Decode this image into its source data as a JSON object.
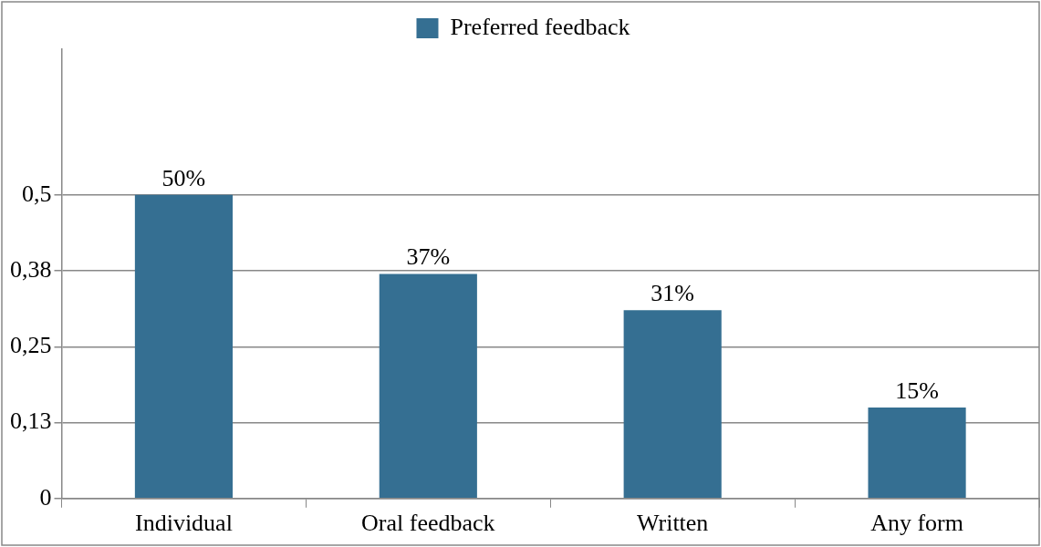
{
  "chart_data": {
    "type": "bar",
    "categories": [
      "Individual",
      "Oral feedback",
      "Written",
      "Any form"
    ],
    "series": [
      {
        "name": "Preferred feedback",
        "color": "#356f92",
        "values": [
          0.5,
          0.37,
          0.31,
          0.15
        ],
        "value_labels": [
          "50%",
          "37%",
          "31%",
          "15%"
        ]
      }
    ],
    "ylim": [
      0,
      0.74
    ],
    "yticks": [
      0,
      {
        "value": 0.125,
        "label": "0,13"
      },
      {
        "value": 0.25,
        "label": "0,25"
      },
      {
        "value": 0.375,
        "label": "0,38"
      },
      {
        "value": 0.5,
        "label": "0,5"
      }
    ],
    "grid": "y",
    "legend": "top"
  }
}
